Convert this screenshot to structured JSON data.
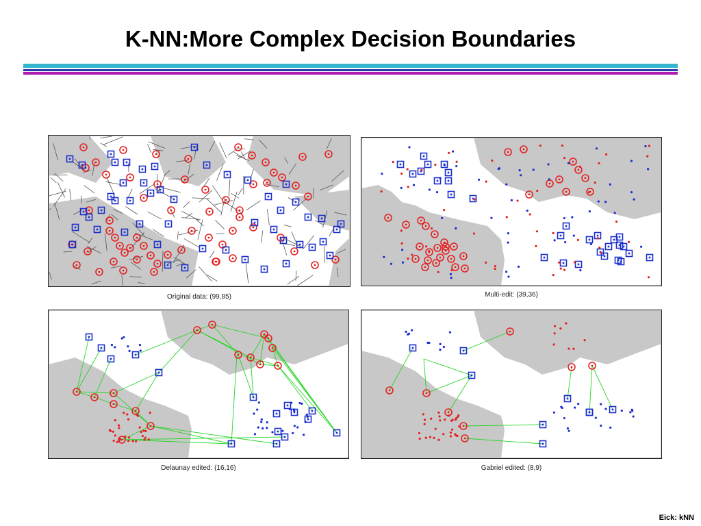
{
  "slide": {
    "title": "K-NN:More Complex Decision Boundaries",
    "footer": "Eick: kNN"
  },
  "colors": {
    "class_a": "#e52020",
    "class_b": "#1a2ecc",
    "region_fill": "#c8c8c8",
    "edge_line": "#26d426",
    "voronoi_line": "#555555"
  },
  "panels": [
    {
      "id": "original",
      "caption": "Original data: (99,85)"
    },
    {
      "id": "multi",
      "caption": "Multi-edit: (39,36)"
    },
    {
      "id": "delaunay",
      "caption": "Delaunay edited: (16,16)"
    },
    {
      "id": "gabriel",
      "caption": "Gabriel edited: (8,9)"
    }
  ]
}
